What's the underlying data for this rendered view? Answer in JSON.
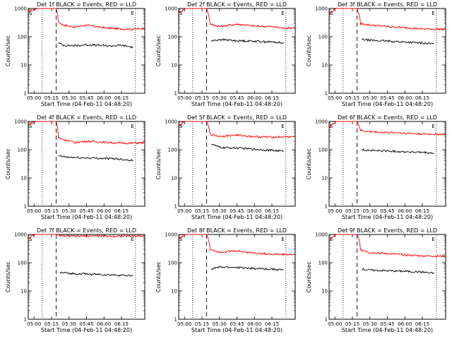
{
  "chart_data": [
    {
      "type": "line",
      "title": "Det 1f BLACK = Events, RED = LLD",
      "xlabel": "Start Time (04-Feb-11 04:48:20)",
      "ylabel": "Counts/sec",
      "yscale": "log",
      "ylim": [
        1,
        1000
      ],
      "x_tick_labels": [
        "05:00",
        "05:15",
        "05:30",
        "05:45",
        "06:00",
        "06:15"
      ],
      "y_tick_labels": [
        "1",
        "10",
        "100",
        "1000"
      ],
      "annotations": [
        "S",
        "E"
      ],
      "series": [
        {
          "color": "#ff0000",
          "values": [
            [
              0,
              800
            ],
            [
              0.08,
              1000
            ],
            [
              0.24,
              1000
            ],
            [
              0.26,
              330
            ],
            [
              0.3,
              260
            ],
            [
              0.4,
              220
            ],
            [
              0.5,
              260
            ],
            [
              0.6,
              220
            ],
            [
              0.7,
              200
            ],
            [
              0.8,
              190
            ],
            [
              0.9,
              185
            ],
            [
              1,
              200
            ]
          ]
        },
        {
          "color": "#000000",
          "values": [
            [
              0.26,
              60
            ],
            [
              0.3,
              50
            ],
            [
              0.4,
              48
            ],
            [
              0.5,
              52
            ],
            [
              0.6,
              50
            ],
            [
              0.7,
              47
            ],
            [
              0.8,
              50
            ],
            [
              0.9,
              42
            ]
          ]
        }
      ]
    },
    {
      "type": "line",
      "title": "Det 2f BLACK = Events, RED = LLD",
      "xlabel": "Start Time (04-Feb-11 04:48:20)",
      "ylabel": "Counts/sec",
      "yscale": "log",
      "ylim": [
        1,
        1000
      ],
      "x_tick_labels": [
        "05:00",
        "05:15",
        "05:30",
        "05:45",
        "06:00",
        "06:15"
      ],
      "y_tick_labels": [
        "1",
        "10",
        "100",
        "1000"
      ],
      "annotations": [
        "S",
        "E"
      ],
      "series": [
        {
          "color": "#ff0000",
          "values": [
            [
              0,
              700
            ],
            [
              0.06,
              1000
            ],
            [
              0.24,
              1000
            ],
            [
              0.27,
              280
            ],
            [
              0.35,
              230
            ],
            [
              0.5,
              280
            ],
            [
              0.65,
              240
            ],
            [
              0.8,
              230
            ],
            [
              0.9,
              200
            ],
            [
              1,
              210
            ]
          ]
        },
        {
          "color": "#000000",
          "values": [
            [
              0.28,
              70
            ],
            [
              0.35,
              80
            ],
            [
              0.5,
              72
            ],
            [
              0.65,
              70
            ],
            [
              0.8,
              65
            ],
            [
              0.9,
              60
            ]
          ]
        }
      ]
    },
    {
      "type": "line",
      "title": "Det 3f BLACK = Events, RED = LLD",
      "xlabel": "Start Time (04-Feb-11 04:48:20)",
      "ylabel": "Counts/sec",
      "yscale": "log",
      "ylim": [
        1,
        1000
      ],
      "x_tick_labels": [
        "05:00",
        "05:15",
        "05:30",
        "05:45",
        "06:00",
        "06:15"
      ],
      "y_tick_labels": [
        "1",
        "10",
        "100",
        "1000"
      ],
      "annotations": [
        "S",
        "E"
      ],
      "series": [
        {
          "color": "#ff0000",
          "values": [
            [
              0,
              600
            ],
            [
              0.06,
              1000
            ],
            [
              0.24,
              1000
            ],
            [
              0.27,
              290
            ],
            [
              0.35,
              260
            ],
            [
              0.5,
              230
            ],
            [
              0.65,
              210
            ],
            [
              0.8,
              190
            ],
            [
              1,
              185
            ]
          ]
        },
        {
          "color": "#000000",
          "values": [
            [
              0.28,
              80
            ],
            [
              0.35,
              75
            ],
            [
              0.5,
              70
            ],
            [
              0.65,
              65
            ],
            [
              0.8,
              60
            ],
            [
              0.9,
              55
            ]
          ]
        }
      ]
    },
    {
      "type": "line",
      "title": "Det 4f BLACK = Events, RED = LLD",
      "xlabel": "Start Time (04-Feb-11 04:48:20)",
      "ylabel": "Counts/sec",
      "yscale": "log",
      "ylim": [
        1,
        1000
      ],
      "x_tick_labels": [
        "05:00",
        "05:15",
        "05:30",
        "05:45",
        "06:00",
        "06:15"
      ],
      "y_tick_labels": [
        "1",
        "10",
        "100",
        "1000"
      ],
      "annotations": [
        "S",
        "E"
      ],
      "series": [
        {
          "color": "#ff0000",
          "values": [
            [
              0,
              800
            ],
            [
              0.07,
              1000
            ],
            [
              0.24,
              1000
            ],
            [
              0.26,
              260
            ],
            [
              0.32,
              220
            ],
            [
              0.4,
              180
            ],
            [
              0.5,
              200
            ],
            [
              0.6,
              190
            ],
            [
              0.75,
              175
            ],
            [
              0.9,
              170
            ],
            [
              1,
              180
            ]
          ]
        },
        {
          "color": "#000000",
          "values": [
            [
              0.26,
              60
            ],
            [
              0.32,
              55
            ],
            [
              0.45,
              52
            ],
            [
              0.6,
              50
            ],
            [
              0.75,
              48
            ],
            [
              0.9,
              42
            ]
          ]
        }
      ]
    },
    {
      "type": "line",
      "title": "Det 5f BLACK = Events, RED = LLD",
      "xlabel": "Start Time (04-Feb-11 04:48:20)",
      "ylabel": "Counts/sec",
      "yscale": "log",
      "ylim": [
        1,
        1000
      ],
      "x_tick_labels": [
        "05:00",
        "05:15",
        "05:30",
        "05:45",
        "06:00",
        "06:15"
      ],
      "y_tick_labels": [
        "1",
        "10",
        "100",
        "1000"
      ],
      "annotations": [
        "S",
        "E"
      ],
      "series": [
        {
          "color": "#ff0000",
          "values": [
            [
              0,
              700
            ],
            [
              0.06,
              1000
            ],
            [
              0.24,
              1000
            ],
            [
              0.27,
              350
            ],
            [
              0.35,
              300
            ],
            [
              0.5,
              330
            ],
            [
              0.65,
              290
            ],
            [
              0.8,
              280
            ],
            [
              1,
              290
            ]
          ]
        },
        {
          "color": "#000000",
          "values": [
            [
              0.28,
              160
            ],
            [
              0.35,
              120
            ],
            [
              0.5,
              115
            ],
            [
              0.65,
              105
            ],
            [
              0.8,
              95
            ],
            [
              0.9,
              90
            ]
          ]
        }
      ]
    },
    {
      "type": "line",
      "title": "Det 6f BLACK = Events, RED = LLD",
      "xlabel": "Start Time (04-Feb-11 04:48:20)",
      "ylabel": "Counts/sec",
      "yscale": "log",
      "ylim": [
        1,
        1000
      ],
      "x_tick_labels": [
        "05:00",
        "05:15",
        "05:30",
        "05:45",
        "06:00",
        "06:15"
      ],
      "y_tick_labels": [
        "1",
        "10",
        "100",
        "1000"
      ],
      "annotations": [
        "S",
        "E"
      ],
      "series": [
        {
          "color": "#ff0000",
          "values": [
            [
              0,
              600
            ],
            [
              0.06,
              1000
            ],
            [
              0.24,
              1000
            ],
            [
              0.27,
              480
            ],
            [
              0.35,
              430
            ],
            [
              0.5,
              410
            ],
            [
              0.65,
              390
            ],
            [
              0.8,
              360
            ],
            [
              1,
              350
            ]
          ]
        },
        {
          "color": "#000000",
          "values": [
            [
              0.28,
              100
            ],
            [
              0.35,
              95
            ],
            [
              0.5,
              90
            ],
            [
              0.65,
              85
            ],
            [
              0.8,
              80
            ],
            [
              0.9,
              75
            ]
          ]
        }
      ]
    },
    {
      "type": "line",
      "title": "Det 7f BLACK = Events, RED = LLD",
      "xlabel": "Start Time (04-Feb-11 04:48:20)",
      "ylabel": "Counts/sec",
      "yscale": "log",
      "ylim": [
        1,
        1000
      ],
      "x_tick_labels": [
        "05:00",
        "05:15",
        "05:30",
        "05:45",
        "06:00",
        "06:15"
      ],
      "y_tick_labels": [
        "1",
        "10",
        "100",
        "1000"
      ],
      "annotations": [
        "S",
        "E"
      ],
      "series": [
        {
          "color": "#ff0000",
          "values": [
            [
              0,
              700
            ],
            [
              0.06,
              1000
            ],
            [
              0.24,
              1000
            ],
            [
              0.27,
              900
            ],
            [
              0.4,
              870
            ],
            [
              0.55,
              900
            ],
            [
              0.7,
              870
            ],
            [
              0.85,
              880
            ],
            [
              1,
              900
            ]
          ]
        },
        {
          "color": "#000000",
          "values": [
            [
              0.27,
              45
            ],
            [
              0.35,
              42
            ],
            [
              0.5,
              40
            ],
            [
              0.65,
              38
            ],
            [
              0.8,
              36
            ],
            [
              0.9,
              35
            ]
          ]
        }
      ]
    },
    {
      "type": "line",
      "title": "Det 8f BLACK = Events, RED = LLD",
      "xlabel": "Start Time (04-Feb-11 04:48:20)",
      "ylabel": "Counts/sec",
      "yscale": "log",
      "ylim": [
        1,
        1000
      ],
      "x_tick_labels": [
        "05:00",
        "05:15",
        "05:30",
        "05:45",
        "06:00",
        "06:15"
      ],
      "y_tick_labels": [
        "1",
        "10",
        "100",
        "1000"
      ],
      "annotations": [
        "S",
        "E"
      ],
      "series": [
        {
          "color": "#ff0000",
          "values": [
            [
              0,
              700
            ],
            [
              0.06,
              1000
            ],
            [
              0.24,
              1000
            ],
            [
              0.27,
              300
            ],
            [
              0.35,
              240
            ],
            [
              0.5,
              260
            ],
            [
              0.65,
              220
            ],
            [
              0.8,
              200
            ],
            [
              1,
              195
            ]
          ]
        },
        {
          "color": "#000000",
          "values": [
            [
              0.28,
              60
            ],
            [
              0.35,
              70
            ],
            [
              0.5,
              68
            ],
            [
              0.65,
              62
            ],
            [
              0.8,
              60
            ],
            [
              0.9,
              55
            ]
          ]
        }
      ]
    },
    {
      "type": "line",
      "title": "Det 9f BLACK = Events, RED = LLD",
      "xlabel": "Start Time (04-Feb-11 04:48:20)",
      "ylabel": "Counts/sec",
      "yscale": "log",
      "ylim": [
        1,
        1000
      ],
      "x_tick_labels": [
        "05:00",
        "05:15",
        "05:30",
        "05:45",
        "06:00",
        "06:15"
      ],
      "y_tick_labels": [
        "1",
        "10",
        "100",
        "1000"
      ],
      "annotations": [
        "S",
        "E"
      ],
      "series": [
        {
          "color": "#ff0000",
          "values": [
            [
              0,
              600
            ],
            [
              0.06,
              1000
            ],
            [
              0.24,
              1000
            ],
            [
              0.27,
              290
            ],
            [
              0.35,
              230
            ],
            [
              0.5,
              210
            ],
            [
              0.65,
              190
            ],
            [
              0.8,
              175
            ],
            [
              1,
              170
            ]
          ]
        },
        {
          "color": "#000000",
          "values": [
            [
              0.28,
              60
            ],
            [
              0.35,
              55
            ],
            [
              0.5,
              52
            ],
            [
              0.65,
              50
            ],
            [
              0.8,
              47
            ],
            [
              0.9,
              42
            ]
          ]
        }
      ]
    }
  ]
}
